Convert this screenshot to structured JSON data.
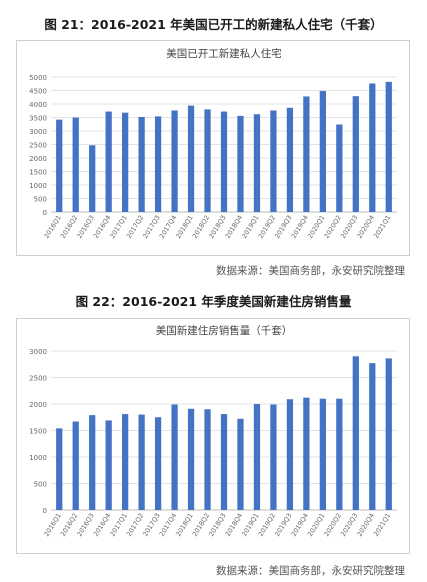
{
  "figure1": {
    "heading": "图 21：2016-2021 年美国已开工的新建私人住宅（千套）",
    "source": "数据来源：美国商务部，永安研究院整理"
  },
  "figure2": {
    "heading": "图 22：2016-2021 年季度美国新建住房销售量",
    "source": "数据来源：美国商务部，永安研究院整理"
  },
  "chart_data": [
    {
      "type": "bar",
      "title": "美国已开工新建私人住宅",
      "categories": [
        "2016Q1",
        "2016Q2",
        "2016Q3",
        "2016Q4",
        "2017Q1",
        "2017Q2",
        "2017Q3",
        "2017Q4",
        "2018Q1",
        "2018Q2",
        "2018Q3",
        "2018Q4",
        "2019Q1",
        "2019Q2",
        "2019Q3",
        "2019Q4",
        "2020Q1",
        "2020Q2",
        "2020Q3",
        "2020Q4",
        "2021Q1"
      ],
      "values": [
        3420,
        3500,
        2470,
        3720,
        3680,
        3520,
        3540,
        3760,
        3940,
        3800,
        3720,
        3560,
        3620,
        3760,
        3860,
        4280,
        4480,
        3240,
        4290,
        4760,
        4820
      ],
      "ylim": [
        0,
        5000
      ],
      "yticks": [
        0,
        500,
        1000,
        1500,
        2000,
        2500,
        3000,
        3500,
        4000,
        4500,
        5000
      ],
      "grid": true,
      "color": "#4472c4"
    },
    {
      "type": "bar",
      "title": "美国新建住房销售量（千套）",
      "categories": [
        "2016Q1",
        "2016Q2",
        "2016Q3",
        "2016Q4",
        "2017Q1",
        "2017Q2",
        "2017Q3",
        "2017Q4",
        "2018Q1",
        "2018Q2",
        "2018Q3",
        "2018Q4",
        "2019Q1",
        "2019Q2",
        "2019Q3",
        "2019Q4",
        "2020Q1",
        "2020Q2",
        "2020Q3",
        "2020Q4",
        "2021Q1"
      ],
      "values": [
        1540,
        1670,
        1790,
        1690,
        1810,
        1800,
        1750,
        1990,
        1910,
        1900,
        1810,
        1720,
        2000,
        1990,
        2090,
        2120,
        2100,
        2100,
        2900,
        2770,
        2860
      ],
      "ylim": [
        0,
        3000
      ],
      "yticks": [
        0,
        500,
        1000,
        1500,
        2000,
        2500,
        3000
      ],
      "grid": true,
      "color": "#4472c4"
    }
  ]
}
